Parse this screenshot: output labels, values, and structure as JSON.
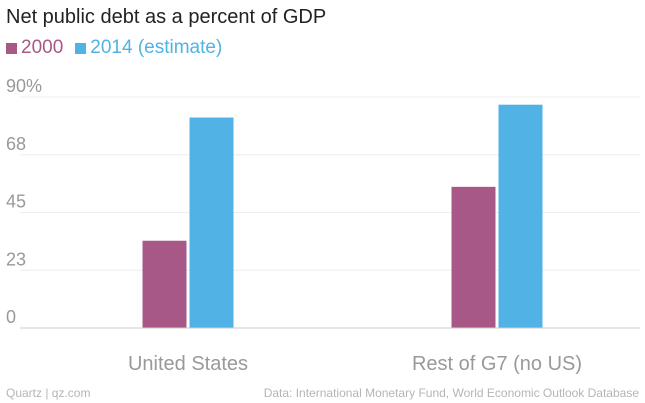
{
  "colors": {
    "series1": "#a85887",
    "series2": "#51b2e5"
  },
  "footer": {
    "left": "Quartz | qz.com",
    "right": "Data: International Monetary Fund, World Economic Outlook Database"
  },
  "chart_data": {
    "type": "bar",
    "title": "Net public debt as a percent of GDP",
    "categories": [
      "United States",
      "Rest of G7 (no US)"
    ],
    "series": [
      {
        "name": "2000",
        "values": [
          34,
          55
        ]
      },
      {
        "name": "2014 (estimate)",
        "values": [
          82,
          87
        ]
      }
    ],
    "yticks": [
      "0",
      "23",
      "45",
      "68",
      "90%"
    ],
    "ytick_values": [
      0,
      22.5,
      45,
      67.5,
      90
    ],
    "ylim": [
      0,
      90
    ],
    "xlabel": "",
    "ylabel": "",
    "grid": true,
    "legend": "top-left"
  }
}
